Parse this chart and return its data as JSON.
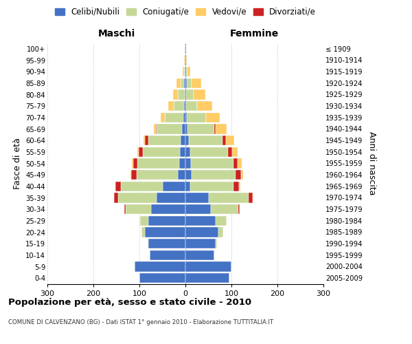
{
  "age_groups": [
    "0-4",
    "5-9",
    "10-14",
    "15-19",
    "20-24",
    "25-29",
    "30-34",
    "35-39",
    "40-44",
    "45-49",
    "50-54",
    "55-59",
    "60-64",
    "65-69",
    "70-74",
    "75-79",
    "80-84",
    "85-89",
    "90-94",
    "95-99",
    "100+"
  ],
  "birth_years": [
    "2005-2009",
    "2000-2004",
    "1995-1999",
    "1990-1994",
    "1985-1989",
    "1980-1984",
    "1975-1979",
    "1970-1974",
    "1965-1969",
    "1960-1964",
    "1955-1959",
    "1950-1954",
    "1945-1949",
    "1940-1944",
    "1935-1939",
    "1930-1934",
    "1925-1929",
    "1920-1924",
    "1915-1919",
    "1910-1914",
    "≤ 1909"
  ],
  "male": {
    "celibi": [
      100,
      110,
      78,
      80,
      88,
      80,
      75,
      62,
      50,
      16,
      14,
      12,
      10,
      7,
      5,
      3,
      2,
      3,
      1,
      1,
      1
    ],
    "coniugati": [
      0,
      0,
      0,
      2,
      8,
      18,
      55,
      85,
      90,
      90,
      90,
      80,
      70,
      55,
      40,
      22,
      15,
      8,
      2,
      0,
      0
    ],
    "vedovi": [
      0,
      0,
      0,
      0,
      0,
      2,
      0,
      0,
      0,
      2,
      2,
      2,
      3,
      5,
      8,
      12,
      10,
      9,
      3,
      2,
      0
    ],
    "divorziati": [
      0,
      0,
      0,
      0,
      0,
      0,
      3,
      8,
      12,
      12,
      10,
      10,
      8,
      2,
      0,
      0,
      0,
      0,
      0,
      0,
      0
    ]
  },
  "female": {
    "nubili": [
      95,
      100,
      62,
      65,
      72,
      65,
      55,
      50,
      10,
      14,
      12,
      10,
      8,
      5,
      3,
      2,
      2,
      3,
      1,
      1,
      1
    ],
    "coniugate": [
      0,
      0,
      0,
      3,
      10,
      24,
      60,
      88,
      95,
      95,
      92,
      82,
      72,
      58,
      42,
      24,
      16,
      10,
      3,
      0,
      0
    ],
    "vedove": [
      0,
      0,
      0,
      0,
      0,
      0,
      0,
      2,
      3,
      5,
      8,
      12,
      18,
      25,
      30,
      32,
      26,
      22,
      6,
      2,
      0
    ],
    "divorziate": [
      0,
      0,
      0,
      0,
      0,
      0,
      3,
      8,
      12,
      12,
      10,
      10,
      8,
      2,
      0,
      0,
      0,
      0,
      0,
      0,
      0
    ]
  },
  "colors": {
    "celibi": "#4472C4",
    "coniugati": "#C5D898",
    "vedovi": "#FFCC66",
    "divorziati": "#CC2222"
  },
  "xlim": 300,
  "title": "Popolazione per età, sesso e stato civile - 2010",
  "subtitle": "COMUNE DI CALVENZANO (BG) - Dati ISTAT 1° gennaio 2010 - Elaborazione TUTTITALIA.IT",
  "ylabel_left": "Fasce di età",
  "ylabel_right": "Anni di nascita",
  "label_maschi": "Maschi",
  "label_femmine": "Femmine",
  "legend_labels": [
    "Celibi/Nubili",
    "Coniugati/e",
    "Vedovi/e",
    "Divorziati/e"
  ],
  "background_color": "#ffffff",
  "grid_color": "#cccccc"
}
